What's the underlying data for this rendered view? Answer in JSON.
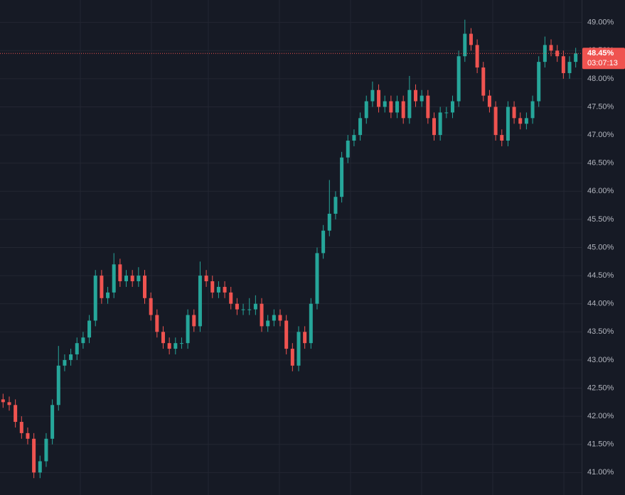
{
  "chart_data": {
    "type": "candlestick",
    "up_color": "#26a69a",
    "down_color": "#ef5350",
    "open": [
      42.3,
      42.25,
      42.2,
      41.9,
      41.7,
      41.6,
      41.0,
      41.2,
      41.6,
      42.2,
      42.9,
      43.0,
      43.1,
      43.3,
      43.4,
      43.7,
      44.5,
      44.1,
      44.2,
      44.7,
      44.4,
      44.5,
      44.4,
      44.5,
      44.1,
      43.8,
      43.5,
      43.3,
      43.2,
      43.3,
      43.3,
      43.8,
      43.6,
      44.5,
      44.4,
      44.2,
      44.3,
      44.2,
      44.0,
      43.9,
      43.9,
      43.9,
      44.0,
      43.6,
      43.7,
      43.8,
      43.7,
      43.2,
      42.9,
      43.5,
      43.3,
      44.0,
      44.9,
      45.3,
      45.6,
      45.9,
      46.6,
      46.9,
      47.0,
      47.3,
      47.6,
      47.8,
      47.5,
      47.6,
      47.4,
      47.6,
      47.3,
      47.8,
      47.6,
      47.7,
      47.3,
      47.0,
      47.4,
      47.4,
      47.6,
      48.4,
      48.8,
      48.6,
      48.2,
      47.7,
      47.5,
      47.0,
      46.9,
      47.5,
      47.3,
      47.2,
      47.3,
      47.6,
      48.3,
      48.6,
      48.5,
      48.4,
      48.1,
      48.3
    ],
    "high": [
      42.4,
      42.35,
      42.3,
      42.0,
      41.8,
      41.7,
      41.3,
      41.7,
      42.3,
      43.25,
      43.1,
      43.2,
      43.4,
      43.5,
      43.8,
      44.6,
      44.6,
      44.3,
      44.9,
      44.8,
      44.6,
      44.6,
      44.65,
      44.6,
      44.2,
      43.9,
      43.6,
      43.4,
      43.4,
      43.4,
      43.9,
      43.9,
      44.75,
      44.6,
      44.5,
      44.4,
      44.4,
      44.3,
      44.1,
      44.0,
      44.1,
      44.15,
      44.1,
      43.8,
      43.9,
      43.9,
      43.8,
      43.3,
      43.6,
      43.6,
      44.1,
      45.0,
      45.4,
      46.2,
      46.0,
      46.7,
      47.0,
      47.1,
      47.4,
      47.7,
      47.95,
      47.9,
      47.7,
      47.7,
      47.7,
      47.7,
      48.05,
      47.9,
      47.8,
      47.8,
      47.4,
      47.5,
      47.5,
      47.7,
      48.5,
      49.05,
      48.9,
      48.7,
      48.3,
      47.8,
      47.6,
      47.1,
      47.6,
      47.6,
      47.4,
      47.4,
      47.7,
      48.4,
      48.75,
      48.7,
      48.6,
      48.5,
      48.4,
      48.55
    ],
    "low": [
      42.15,
      42.1,
      41.8,
      41.6,
      41.5,
      40.9,
      40.9,
      41.1,
      41.5,
      42.1,
      42.8,
      42.9,
      43.0,
      43.2,
      43.3,
      43.6,
      44.0,
      44.0,
      44.1,
      44.3,
      44.3,
      44.3,
      44.3,
      44.0,
      43.7,
      43.4,
      43.2,
      43.1,
      43.1,
      43.2,
      43.2,
      43.5,
      43.5,
      44.3,
      44.1,
      44.1,
      44.1,
      43.9,
      43.8,
      43.8,
      43.8,
      43.8,
      43.5,
      43.5,
      43.6,
      43.6,
      43.1,
      42.8,
      42.8,
      43.2,
      43.2,
      43.9,
      44.8,
      45.2,
      45.5,
      45.8,
      46.5,
      46.8,
      46.9,
      47.2,
      47.5,
      47.4,
      47.4,
      47.3,
      47.3,
      47.2,
      47.2,
      47.5,
      47.5,
      47.2,
      46.9,
      46.9,
      47.3,
      47.3,
      47.5,
      48.3,
      48.5,
      48.1,
      47.6,
      47.4,
      46.9,
      46.8,
      46.8,
      47.2,
      47.1,
      47.1,
      47.2,
      47.5,
      48.2,
      48.4,
      48.3,
      48.0,
      48.0,
      48.2
    ],
    "close": [
      42.25,
      42.2,
      41.9,
      41.7,
      41.6,
      41.0,
      41.2,
      41.6,
      42.2,
      42.9,
      43.0,
      43.1,
      43.3,
      43.4,
      43.7,
      44.5,
      44.1,
      44.2,
      44.7,
      44.4,
      44.5,
      44.4,
      44.5,
      44.1,
      43.8,
      43.5,
      43.3,
      43.2,
      43.3,
      43.3,
      43.8,
      43.6,
      44.5,
      44.4,
      44.2,
      44.3,
      44.2,
      44.0,
      43.9,
      43.9,
      43.9,
      44.0,
      43.6,
      43.7,
      43.8,
      43.7,
      43.2,
      42.9,
      43.5,
      43.3,
      44.0,
      44.9,
      45.3,
      45.6,
      45.9,
      46.6,
      46.9,
      47.0,
      47.3,
      47.6,
      47.8,
      47.5,
      47.6,
      47.4,
      47.6,
      47.3,
      47.8,
      47.6,
      47.7,
      47.3,
      47.0,
      47.4,
      47.4,
      47.6,
      48.4,
      48.8,
      48.6,
      48.2,
      47.7,
      47.5,
      47.0,
      46.9,
      47.5,
      47.3,
      47.2,
      47.3,
      47.6,
      48.3,
      48.6,
      48.5,
      48.4,
      48.1,
      48.3,
      48.45
    ],
    "ylim": [
      40.6,
      49.4
    ],
    "yticks": [
      {
        "value": 41,
        "label": "41.00%"
      },
      {
        "value": 41.5,
        "label": "41.50%"
      },
      {
        "value": 42,
        "label": "42.00%"
      },
      {
        "value": 42.5,
        "label": "42.50%"
      },
      {
        "value": 43,
        "label": "43.00%"
      },
      {
        "value": 43.5,
        "label": "43.50%"
      },
      {
        "value": 44,
        "label": "44.00%"
      },
      {
        "value": 44.5,
        "label": "44.50%"
      },
      {
        "value": 45,
        "label": "45.00%"
      },
      {
        "value": 45.5,
        "label": "45.50%"
      },
      {
        "value": 46,
        "label": "46.00%"
      },
      {
        "value": 46.5,
        "label": "46.50%"
      },
      {
        "value": 47,
        "label": "47.00%"
      },
      {
        "value": 47.5,
        "label": "47.50%"
      },
      {
        "value": 48,
        "label": "48.00%"
      },
      {
        "value": 48.5,
        "label": "48.50%"
      },
      {
        "value": 49,
        "label": "49.00%"
      }
    ],
    "grid": true,
    "last_price": {
      "value": 48.45,
      "label": "48.45%"
    },
    "countdown": "03:07:13"
  }
}
